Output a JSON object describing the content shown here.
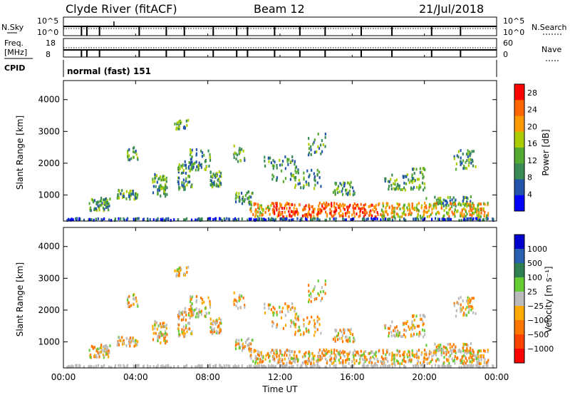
{
  "header": {
    "site": "Clyde River (fitACF)",
    "beam": "Beam 12",
    "date": "21/Jul/2018"
  },
  "noise_panel": {
    "left_label": "N.Sky",
    "left_ticks": [
      "10^5",
      "10^0"
    ],
    "right_ticks": [
      "10^5",
      "10^0"
    ],
    "right_label": "N.Search"
  },
  "freq_panel": {
    "left_label_1": "Freq.",
    "left_label_2": "[MHz]",
    "left_ticks": [
      "18",
      "8"
    ],
    "right_ticks": [
      "60",
      "0"
    ],
    "right_label": "Nave"
  },
  "cpid_panel": {
    "label": "CPID",
    "text": "normal (fast) 151"
  },
  "colors": {
    "power": [
      "#0000ff",
      "#2255aa",
      "#3a8a55",
      "#55aa33",
      "#aacc00",
      "#ff9900",
      "#ff6600",
      "#ff0000"
    ],
    "velocity": [
      "#0000cc",
      "#2a60b0",
      "#2f8050",
      "#66cc33",
      "#bbbbbb",
      "#ffaa00",
      "#ff7700",
      "#ff4400",
      "#ff0000"
    ]
  },
  "chart_data": [
    {
      "type": "heatmap",
      "title": "",
      "xlabel": "Time UT",
      "ylabel": "Slant Range [km]",
      "xlim": [
        0,
        24
      ],
      "ylim": [
        180,
        4600
      ],
      "x_ticks": [
        "00:00",
        "04:00",
        "08:00",
        "12:00",
        "16:00",
        "20:00",
        "00:00"
      ],
      "y_ticks": [
        1000,
        2000,
        3000,
        4000
      ],
      "colorbar_label": "Power [dB]",
      "colorbar_ticks": [
        "4",
        "8",
        "12",
        "16",
        "20",
        "24",
        "28"
      ],
      "colorbar_range": [
        0,
        30
      ]
    },
    {
      "type": "heatmap",
      "title": "",
      "xlabel": "Time UT",
      "ylabel": "Slant Range [km]",
      "xlim": [
        0,
        24
      ],
      "ylim": [
        180,
        4600
      ],
      "x_ticks": [
        "00:00",
        "04:00",
        "08:00",
        "12:00",
        "16:00",
        "20:00",
        "00:00"
      ],
      "y_ticks": [
        1000,
        2000,
        3000,
        4000
      ],
      "colorbar_label": "Velocity [m s⁻¹]",
      "colorbar_ticks": [
        "1000",
        "500",
        "100",
        "25",
        "−25",
        "−100",
        "−500",
        "−1000"
      ]
    }
  ]
}
